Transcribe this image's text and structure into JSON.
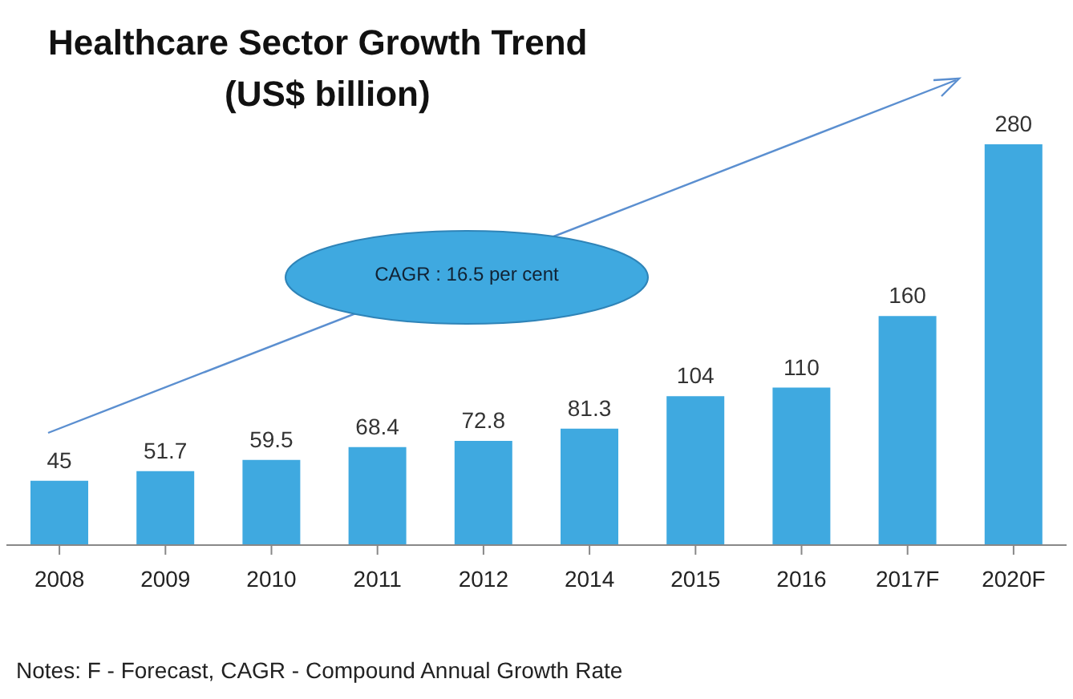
{
  "chart_data": {
    "type": "bar",
    "title": "Healthcare Sector Growth Trend",
    "subtitle": "(US$ billion)",
    "categories": [
      "2008",
      "2009",
      "2010",
      "2011",
      "2012",
      "2014",
      "2015",
      "2016",
      "2017F",
      "2020F"
    ],
    "values": [
      45,
      51.7,
      59.5,
      68.4,
      72.8,
      81.3,
      104,
      110,
      160,
      280
    ],
    "color": "#3fa9e0",
    "data_labels": true,
    "grid": false,
    "legend": false,
    "annotations": [
      "CAGR : 16.5 per cent",
      "Notes: F - Forecast, CAGR - Compound Annual Growth Rate"
    ]
  }
}
